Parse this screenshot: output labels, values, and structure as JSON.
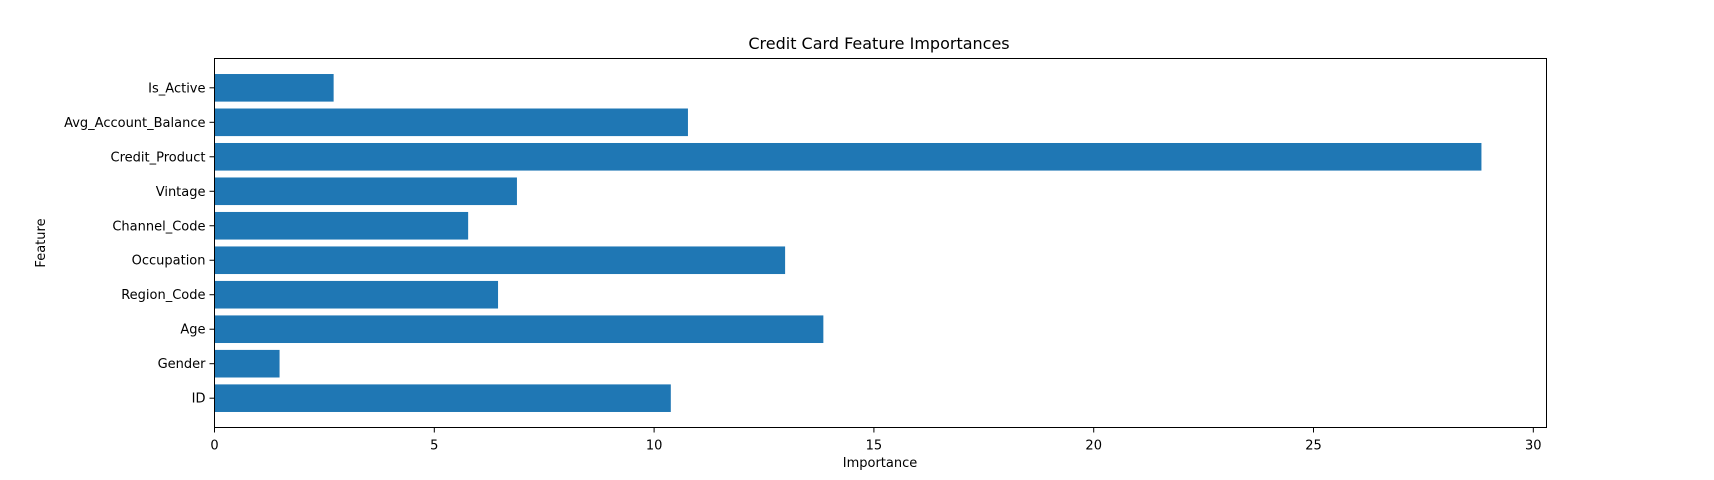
{
  "chart_data": {
    "type": "bar",
    "orientation": "horizontal",
    "title": "Credit Card Feature Importances",
    "xlabel": "Importance",
    "ylabel": "Feature",
    "categories": [
      "ID",
      "Gender",
      "Age",
      "Region_Code",
      "Occupation",
      "Channel_Code",
      "Vintage",
      "Credit_Product",
      "Avg_Account_Balance",
      "Is_Active"
    ],
    "values": [
      10.38,
      1.48,
      13.85,
      6.45,
      12.98,
      5.77,
      6.88,
      28.82,
      10.77,
      2.71
    ],
    "xlim": [
      0,
      30.3
    ],
    "xticks": [
      0,
      5,
      10,
      15,
      20,
      25,
      30
    ],
    "grid": false,
    "bar_color": "#1f77b4"
  }
}
